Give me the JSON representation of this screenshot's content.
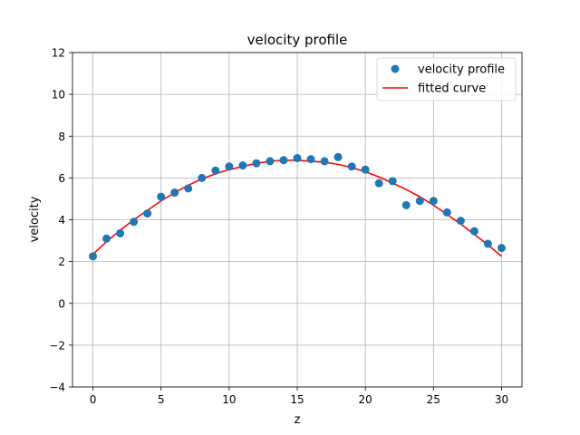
{
  "chart_data": {
    "type": "scatter",
    "title": "velocity profile",
    "xlabel": "z",
    "ylabel": "velocity",
    "xlim": [
      -1.5,
      31.5
    ],
    "ylim": [
      -4,
      12
    ],
    "xticks": [
      0,
      5,
      10,
      15,
      20,
      25,
      30
    ],
    "yticks": [
      -4,
      -2,
      0,
      2,
      4,
      6,
      8,
      10,
      12
    ],
    "yticks_text": [
      "−4",
      "−2",
      "0",
      "2",
      "4",
      "6",
      "8",
      "10",
      "12"
    ],
    "grid": true,
    "legend_position": "top-right",
    "series": [
      {
        "name": "velocity profile",
        "kind": "scatter",
        "color": "#1f77b4",
        "x": [
          0,
          1,
          2,
          3,
          4,
          5,
          6,
          7,
          8,
          9,
          10,
          11,
          12,
          13,
          14,
          15,
          16,
          17,
          18,
          19,
          20,
          21,
          22,
          23,
          24,
          25,
          26,
          27,
          28,
          29,
          30
        ],
        "y": [
          2.25,
          3.1,
          3.35,
          3.9,
          4.3,
          5.1,
          5.3,
          5.5,
          6.0,
          6.35,
          6.55,
          6.6,
          6.7,
          6.8,
          6.85,
          6.95,
          6.9,
          6.8,
          7.0,
          6.55,
          6.4,
          5.75,
          5.85,
          4.7,
          4.9,
          4.9,
          4.35,
          3.95,
          3.45,
          2.85,
          2.65
        ]
      },
      {
        "name": "fitted curve",
        "kind": "line",
        "color": "#ff0000",
        "x": [
          0,
          1,
          2,
          3,
          4,
          5,
          6,
          7,
          8,
          9,
          10,
          11,
          12,
          13,
          14,
          15,
          16,
          17,
          18,
          19,
          20,
          21,
          22,
          23,
          24,
          25,
          26,
          27,
          28,
          29,
          30
        ],
        "y": [
          2.35,
          2.95,
          3.5,
          4.0,
          4.45,
          4.9,
          5.3,
          5.65,
          5.95,
          6.2,
          6.4,
          6.55,
          6.7,
          6.8,
          6.85,
          6.85,
          6.8,
          6.75,
          6.65,
          6.5,
          6.3,
          6.05,
          5.75,
          5.45,
          5.1,
          4.7,
          4.25,
          3.8,
          3.3,
          2.8,
          2.25
        ]
      }
    ]
  }
}
